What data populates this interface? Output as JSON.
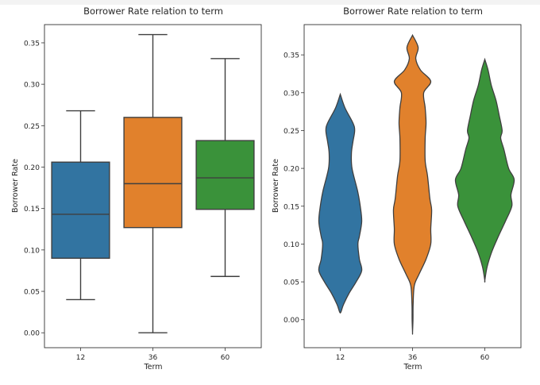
{
  "chart_data": [
    {
      "type": "box",
      "title": "Borrower Rate relation to term",
      "xlabel": "Term",
      "ylabel": "Borrower Rate",
      "categories": [
        "12",
        "36",
        "60"
      ],
      "ylim": [
        -0.018,
        0.372
      ],
      "yticks": [
        0.0,
        0.05,
        0.1,
        0.15,
        0.2,
        0.25,
        0.3,
        0.35
      ],
      "ytick_labels": [
        "0.00",
        "0.05",
        "0.10",
        "0.15",
        "0.20",
        "0.25",
        "0.30",
        "0.35"
      ],
      "grid": false,
      "boxes": [
        {
          "category": "12",
          "whislo": 0.04,
          "q1": 0.09,
          "med": 0.143,
          "q3": 0.206,
          "whishi": 0.268
        },
        {
          "category": "36",
          "whislo": 0.0,
          "q1": 0.127,
          "med": 0.18,
          "q3": 0.26,
          "whishi": 0.36
        },
        {
          "category": "60",
          "whislo": 0.068,
          "q1": 0.149,
          "med": 0.187,
          "q3": 0.232,
          "whishi": 0.331
        }
      ],
      "colors": [
        "#3274a1",
        "#e1812c",
        "#3a923a"
      ]
    },
    {
      "type": "violin",
      "title": "Borrower Rate relation to term",
      "xlabel": "Term",
      "ylabel": "Borrower Rate",
      "categories": [
        "12",
        "36",
        "60"
      ],
      "ylim": [
        -0.037,
        0.39
      ],
      "yticks": [
        0.0,
        0.05,
        0.1,
        0.15,
        0.2,
        0.25,
        0.3,
        0.35
      ],
      "ytick_labels": [
        "0.00",
        "0.05",
        "0.10",
        "0.15",
        "0.20",
        "0.25",
        "0.30",
        "0.35"
      ],
      "grid": false,
      "violins": [
        {
          "category": "12",
          "y": [
            0.298,
            0.28,
            0.26,
            0.25,
            0.235,
            0.22,
            0.2,
            0.17,
            0.15,
            0.13,
            0.11,
            0.1,
            0.08,
            0.065,
            0.05,
            0.035,
            0.02,
            0.01
          ],
          "density": [
            0.0,
            0.16,
            0.43,
            0.49,
            0.43,
            0.38,
            0.4,
            0.59,
            0.68,
            0.73,
            0.65,
            0.6,
            0.65,
            0.73,
            0.54,
            0.3,
            0.11,
            0.02
          ]
        },
        {
          "category": "36",
          "y": [
            0.376,
            0.36,
            0.345,
            0.33,
            0.315,
            0.3,
            0.28,
            0.26,
            0.24,
            0.21,
            0.19,
            0.16,
            0.145,
            0.12,
            0.1,
            0.08,
            0.06,
            0.045,
            0.02,
            0.0,
            -0.017
          ],
          "density": [
            0.0,
            0.19,
            0.11,
            0.27,
            0.62,
            0.38,
            0.43,
            0.46,
            0.43,
            0.43,
            0.51,
            0.59,
            0.65,
            0.62,
            0.62,
            0.46,
            0.22,
            0.06,
            0.02,
            0.015,
            0.0
          ]
        },
        {
          "category": "60",
          "y": [
            0.344,
            0.33,
            0.31,
            0.29,
            0.27,
            0.25,
            0.24,
            0.225,
            0.2,
            0.185,
            0.165,
            0.15,
            0.13,
            0.11,
            0.09,
            0.07,
            0.052
          ],
          "density": [
            0.0,
            0.11,
            0.22,
            0.38,
            0.49,
            0.59,
            0.54,
            0.65,
            0.81,
            1.0,
            0.89,
            0.92,
            0.7,
            0.46,
            0.24,
            0.08,
            0.0
          ]
        }
      ],
      "colors": [
        "#3274a1",
        "#e1812c",
        "#3a923a"
      ]
    }
  ]
}
